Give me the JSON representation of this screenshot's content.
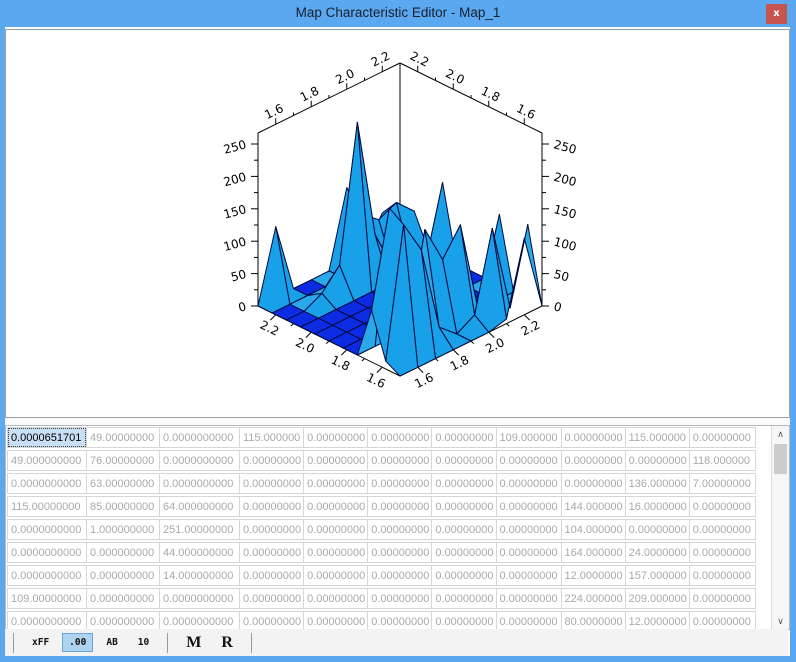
{
  "window": {
    "title": "Map Characteristic Editor - Map_1",
    "close_label": "x",
    "titlebar_color": "#5ba7f0",
    "close_color": "#c85450"
  },
  "chart_data": {
    "type": "heatmap",
    "style": "3d-surface-plot",
    "title": "",
    "x_tick_labels": [
      "1.6",
      "1.8",
      "2.0",
      "2.2"
    ],
    "y_tick_labels": [
      "1.6",
      "1.8",
      "2.0",
      "2.2"
    ],
    "z_tick_labels": [
      "0",
      "50",
      "100",
      "150",
      "200",
      "250"
    ],
    "x_range": [
      1.5,
      2.3
    ],
    "y_range": [
      1.5,
      2.3
    ],
    "z_range": [
      0,
      267
    ],
    "floor_color": "#0b2ce2",
    "surface_color_high": "#29a9ea",
    "surface_color_side": "#18a0e8",
    "edge_color": "#000a40",
    "z_matrix": [
      [
        6.51701e-05,
        49,
        0,
        115,
        0,
        0,
        0,
        109,
        0,
        115,
        0
      ],
      [
        49,
        76,
        0,
        0,
        0,
        0,
        0,
        0,
        0,
        0,
        118
      ],
      [
        0,
        63,
        0,
        0,
        0,
        0,
        0,
        0,
        0,
        136,
        7
      ],
      [
        115,
        85,
        64,
        0,
        0,
        0,
        0,
        0,
        144,
        16,
        0
      ],
      [
        0,
        1,
        251,
        0,
        0,
        0,
        0,
        0,
        104,
        0,
        0
      ],
      [
        0,
        0,
        44,
        0,
        0,
        0,
        0,
        0,
        164,
        24,
        0
      ],
      [
        0,
        0,
        14,
        0,
        0,
        0,
        0,
        0,
        12,
        157,
        0
      ],
      [
        109,
        0,
        0,
        0,
        0,
        0,
        0,
        0,
        224,
        209,
        0
      ],
      [
        0,
        0,
        0,
        0,
        0,
        0,
        0,
        0,
        80,
        12,
        0
      ]
    ]
  },
  "table": {
    "selected_cell": {
      "row": 0,
      "col": 0
    },
    "rows": [
      [
        "0.0000651701",
        "49.00000000",
        "0.0000000000",
        "115.000000",
        "0.00000000",
        "0.00000000",
        "0.00000000",
        "109.000000",
        "0.00000000",
        "115.000000",
        "0.00000000"
      ],
      [
        "49.000000000",
        "76.00000000",
        "0.0000000000",
        "0.00000000",
        "0.00000000",
        "0.00000000",
        "0.00000000",
        "0.00000000",
        "0.00000000",
        "0.00000000",
        "118.000000"
      ],
      [
        "0.0000000000",
        "63.00000000",
        "0.0000000000",
        "0.00000000",
        "0.00000000",
        "0.00000000",
        "0.00000000",
        "0.00000000",
        "0.00000000",
        "136.000000",
        "7.00000000"
      ],
      [
        "115.00000000",
        "85.00000000",
        "64.000000000",
        "0.00000000",
        "0.00000000",
        "0.00000000",
        "0.00000000",
        "0.00000000",
        "144.000000",
        "16.0000000",
        "0.00000000"
      ],
      [
        "0.0000000000",
        "1.000000000",
        "251.00000000",
        "0.00000000",
        "0.00000000",
        "0.00000000",
        "0.00000000",
        "0.00000000",
        "104.000000",
        "0.00000000",
        "0.00000000"
      ],
      [
        "0.0000000000",
        "0.000000000",
        "44.000000000",
        "0.00000000",
        "0.00000000",
        "0.00000000",
        "0.00000000",
        "0.00000000",
        "164.000000",
        "24.0000000",
        "0.00000000"
      ],
      [
        "0.0000000000",
        "0.000000000",
        "14.000000000",
        "0.00000000",
        "0.00000000",
        "0.00000000",
        "0.00000000",
        "0.00000000",
        "12.0000000",
        "157.000000",
        "0.00000000"
      ],
      [
        "109.00000000",
        "0.000000000",
        "0.0000000000",
        "0.00000000",
        "0.00000000",
        "0.00000000",
        "0.00000000",
        "0.00000000",
        "224.000000",
        "209.000000",
        "0.00000000"
      ],
      [
        "0.0000000000",
        "0.000000000",
        "0.0000000000",
        "0.00000000",
        "0.00000000",
        "0.00000000",
        "0.00000000",
        "0.00000000",
        "80.0000000",
        "12.0000000",
        "0.00000000"
      ]
    ]
  },
  "scrollbar": {
    "up_icon": "∧",
    "down_icon": "∨"
  },
  "toolbar": {
    "format_buttons": [
      {
        "label": "xFF",
        "name": "hex",
        "selected": false
      },
      {
        "label": ".00",
        "name": "decimal",
        "selected": true
      },
      {
        "label": "AB",
        "name": "ascii",
        "selected": false
      },
      {
        "label": "10",
        "name": "base10",
        "selected": false
      }
    ],
    "action_buttons": [
      {
        "label": "M",
        "name": "m"
      },
      {
        "label": "R",
        "name": "r"
      }
    ]
  }
}
